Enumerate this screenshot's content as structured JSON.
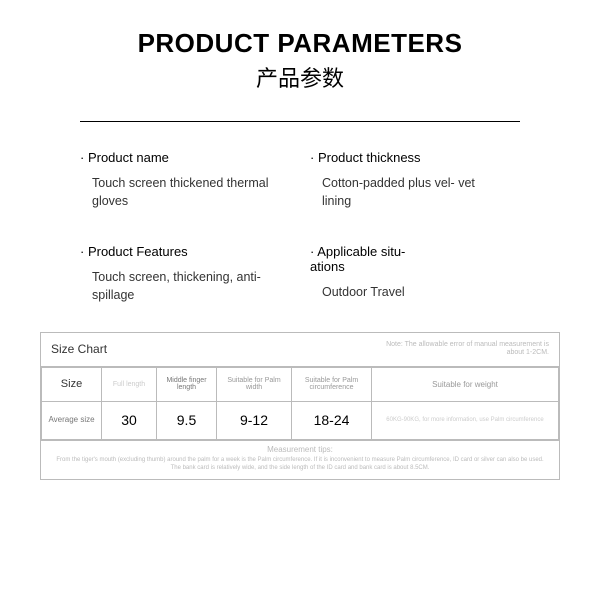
{
  "header": {
    "title_en": "PRODUCT PARAMETERS",
    "title_cn": "产品参数"
  },
  "params": [
    {
      "label": "Product name",
      "value": "Touch screen thickened thermal gloves"
    },
    {
      "label": "Product thickness",
      "value": "Cotton-padded plus vel-\nvet lining"
    },
    {
      "label": "Product Features",
      "value": "Touch screen, thickening, anti-spillage"
    },
    {
      "label": "Applicable situ-\nations",
      "value": "Outdoor Travel"
    }
  ],
  "size_chart": {
    "title": "Size Chart",
    "note": "Note: The allowable error of manual measurement is about 1-2CM.",
    "columns": [
      "Size",
      "Full length",
      "Middle finger length",
      "Suitable for Palm width",
      "Suitable for Palm circumference",
      "Suitable for weight"
    ],
    "row_label": "Average size",
    "values": [
      "-",
      "30",
      "9.5",
      "9-12",
      "18-24",
      "60KG-90KG, for more information, use Palm circumference"
    ],
    "tips_title": "Measurement tips:",
    "tips_lines": [
      "From the tiger's mouth (excluding thumb) around the palm for a week is the Palm circumference. If it is inconvenient to measure Palm circumference, ID card or silver can also be used.",
      "The bank card is relatively wide, and the side length of the ID card and bank card is about 8.5CM."
    ]
  },
  "colors": {
    "text": "#000000",
    "muted": "#bbbbbb",
    "border": "#bbbbbb",
    "background": "#ffffff"
  }
}
